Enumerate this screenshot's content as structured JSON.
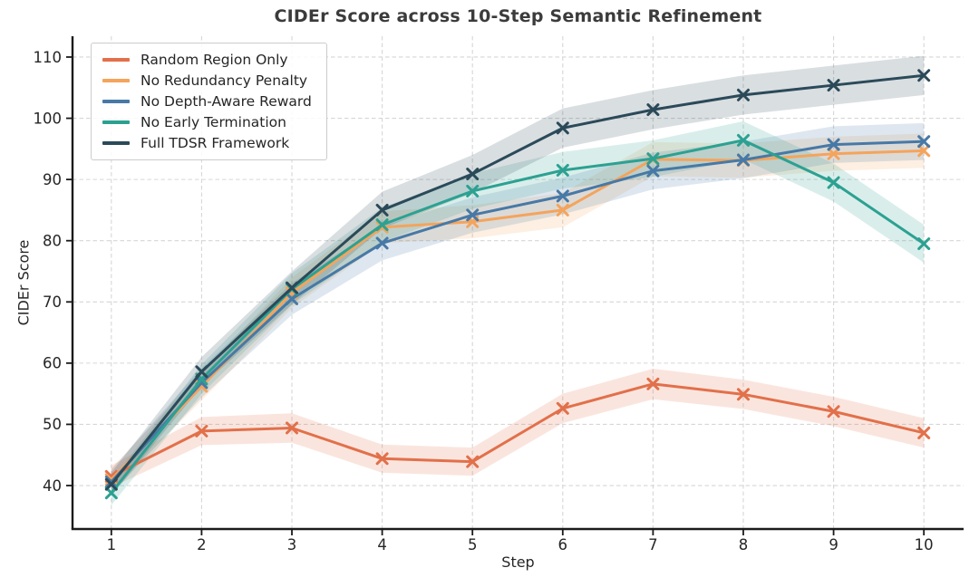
{
  "title": "CIDEr Score across 10-Step Semantic Refinement",
  "chart_data": {
    "type": "line",
    "title": "CIDEr Score across 10-Step Semantic Refinement",
    "xlabel": "Step",
    "ylabel": "CIDEr Score",
    "x": [
      1,
      2,
      3,
      4,
      5,
      6,
      7,
      8,
      9,
      10
    ],
    "x_ticks": [
      "1",
      "2",
      "3",
      "4",
      "5",
      "6",
      "7",
      "8",
      "9",
      "10"
    ],
    "y_ticks": [
      "40",
      "50",
      "60",
      "70",
      "80",
      "90",
      "100",
      "110"
    ],
    "xlim": [
      0.57,
      10.44
    ],
    "ylim": [
      32.9,
      113.4
    ],
    "grid": true,
    "grid_style": "dashed",
    "legend_position": "upper-left",
    "marker": "x",
    "band_opacity": 0.18,
    "series": [
      {
        "name": "Random Region Only",
        "color": "#e2704a",
        "values": [
          41.5,
          48.9,
          49.4,
          44.4,
          43.9,
          52.6,
          56.6,
          54.9,
          52.1,
          48.6
        ],
        "ci": [
          1.8,
          2.3,
          2.4,
          2.3,
          2.3,
          2.4,
          2.5,
          2.4,
          2.4,
          2.4
        ]
      },
      {
        "name": "No Redundancy Penalty",
        "color": "#f4a45c",
        "values": [
          41.0,
          56.2,
          71.5,
          82.2,
          83.1,
          85.0,
          93.3,
          93.1,
          94.2,
          94.7
        ],
        "ci": [
          1.8,
          2.3,
          2.5,
          2.6,
          2.7,
          2.8,
          2.8,
          2.8,
          2.8,
          2.8
        ]
      },
      {
        "name": "No Depth-Aware Reward",
        "color": "#4779a6",
        "values": [
          40.6,
          56.8,
          70.5,
          79.6,
          84.2,
          87.3,
          91.4,
          93.2,
          95.7,
          96.2
        ],
        "ci": [
          2.0,
          2.4,
          2.6,
          2.8,
          2.9,
          3.0,
          3.0,
          3.0,
          3.0,
          3.0
        ]
      },
      {
        "name": "No Early Termination",
        "color": "#2ca192",
        "values": [
          38.8,
          57.4,
          72.1,
          82.6,
          88.1,
          91.5,
          93.4,
          96.4,
          89.5,
          79.5
        ],
        "ci": [
          2.0,
          2.4,
          2.6,
          2.8,
          2.9,
          3.0,
          3.0,
          3.1,
          3.1,
          3.1
        ]
      },
      {
        "name": "Full TDSR Framework",
        "color": "#2b4a59",
        "values": [
          40.2,
          58.6,
          72.3,
          85.0,
          90.9,
          98.4,
          101.4,
          103.8,
          105.4,
          107.0
        ],
        "ci": [
          1.9,
          2.4,
          2.7,
          3.0,
          3.1,
          3.2,
          3.2,
          3.2,
          3.2,
          3.2
        ]
      }
    ]
  }
}
